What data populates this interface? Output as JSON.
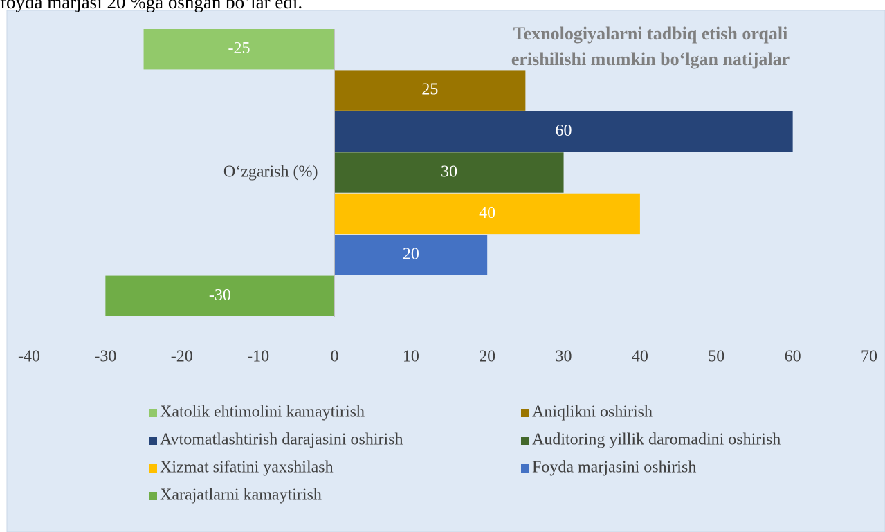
{
  "context_text": "foyda marjasi 20 %ga oshgan bo‘lar edi.",
  "chart_data": {
    "type": "bar",
    "orientation": "horizontal",
    "title": "Texnologiyalarni tadbiq etish orqali erishilishi mumkin bo‘lgan natijalar",
    "categories": [
      "O‘zgarish (%)"
    ],
    "series": [
      {
        "name": "Xatolik ehtimolini kamaytirish",
        "color": "#92c96a",
        "values": [
          -25
        ]
      },
      {
        "name": "Aniqlikni oshirish",
        "color": "#9a7500",
        "values": [
          25
        ]
      },
      {
        "name": "Avtomatlashtirish darajasini oshirish",
        "color": "#264478",
        "values": [
          60
        ]
      },
      {
        "name": "Auditoring yillik daromadini oshirish",
        "color": "#43682b",
        "values": [
          30
        ]
      },
      {
        "name": "Xizmat sifatini yaxshilash",
        "color": "#ffc000",
        "values": [
          40
        ]
      },
      {
        "name": "Foyda marjasini oshirish",
        "color": "#4472c4",
        "values": [
          20
        ]
      },
      {
        "name": "Xarajatlarni kamaytirish",
        "color": "#70ad47",
        "values": [
          -30
        ]
      }
    ],
    "xlim": [
      -40,
      70
    ],
    "xticks": [
      -40,
      -30,
      -20,
      -10,
      0,
      10,
      20,
      30,
      40,
      50,
      60,
      70
    ],
    "grid": false,
    "legend": "bottom"
  }
}
